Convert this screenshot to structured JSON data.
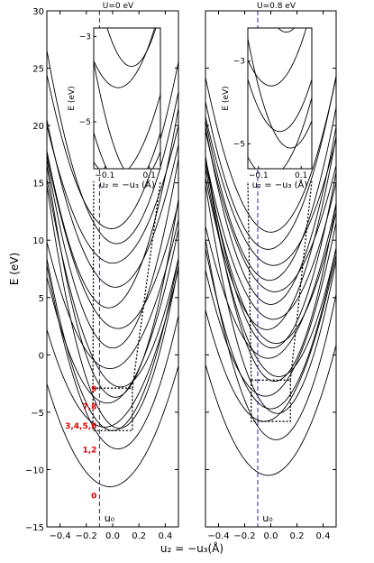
{
  "figure": {
    "ylabel": "E (eV)",
    "xlabel": "u$_2$ = −u$_3$(Å)",
    "xlabel_text": "u₂ = −u₃(Å)"
  },
  "chart_data": [
    {
      "type": "line",
      "title": "U=0 eV",
      "xlim": [
        -0.5,
        0.5
      ],
      "ylim": [
        -15,
        30
      ],
      "xticks": [
        -0.4,
        -0.2,
        0.0,
        0.2,
        0.4
      ],
      "xtick_labels": [
        "−0.4",
        "−0.2",
        "0.0",
        "0.2",
        "0.4"
      ],
      "yticks": [
        -15,
        -10,
        -5,
        0,
        5,
        10,
        15,
        20,
        25,
        30
      ],
      "ytick_labels": [
        "−15",
        "−10",
        "−5",
        "0",
        "5",
        "10",
        "15",
        "20",
        "25",
        "30"
      ],
      "u0": -0.1,
      "u0_label": "u₀",
      "band_minima": [
        -11.5,
        -8.2,
        -6.3,
        -6.4,
        -6.6,
        -4.2,
        -3.7,
        -2.8,
        -1.2,
        0.6,
        2.3,
        4.1,
        5.9,
        8.0,
        9.7,
        11.0
      ],
      "band_curvature": [
        39,
        55,
        44,
        70,
        60,
        52,
        75,
        58,
        48,
        66,
        52,
        62,
        54,
        48,
        60,
        56
      ],
      "band_center": [
        -0.02,
        0.04,
        -0.06,
        0.05,
        0.0,
        -0.04,
        0.02,
        0.06,
        -0.02,
        0.0,
        0.04,
        -0.03,
        0.02,
        0.0,
        0.03,
        -0.01
      ],
      "state_labels": [
        {
          "text": "0",
          "y": -12.2
        },
        {
          "text": "1,2",
          "y": -8.2
        },
        {
          "text": "3,4,5,6",
          "y": -6.1
        },
        {
          "text": "7,8",
          "y": -4.4
        },
        {
          "text": "9",
          "y": -2.9
        }
      ],
      "inset": {
        "xlim": [
          -0.15,
          0.15
        ],
        "ylim": [
          -6.1,
          -2.8
        ],
        "xticks": [
          -0.1,
          0.1
        ],
        "xtick_labels": [
          "−0.1",
          "0.1"
        ],
        "yticks": [
          -5,
          -3
        ],
        "ytick_labels": [
          "−5",
          "−3"
        ],
        "ylabel": "E (eV)",
        "xlabel": "u₂ = −u₃ (Å)"
      },
      "zoom_box": {
        "x": [
          -0.15,
          0.15
        ],
        "y": [
          -6.6,
          -2.9
        ]
      }
    },
    {
      "type": "line",
      "title": "U=0.8 eV",
      "xlim": [
        -0.5,
        0.5
      ],
      "ylim": [
        -15,
        30
      ],
      "xticks": [
        -0.4,
        -0.2,
        0.0,
        0.2,
        0.4
      ],
      "xtick_labels": [
        "−0.4",
        "−0.2",
        "0.0",
        "0.2",
        "0.4"
      ],
      "yticks": [
        -15,
        -10,
        -5,
        0,
        5,
        10,
        15,
        20,
        25,
        30
      ],
      "ytick_labels": [],
      "u0": -0.1,
      "u0_label": "u₀",
      "band_minima": [
        -10.5,
        -7.4,
        -5.8,
        -5.1,
        -4.7,
        -3.6,
        -2.3,
        -1.9,
        -0.3,
        0.6,
        1.0,
        2.2,
        3.1,
        4.4,
        5.5,
        6.5,
        7.8,
        9.2,
        10.7
      ],
      "band_curvature": [
        42,
        60,
        48,
        66,
        56,
        52,
        70,
        58,
        50,
        64,
        54,
        60,
        52,
        62,
        50,
        58,
        48,
        56,
        54
      ],
      "band_center": [
        -0.02,
        0.04,
        -0.05,
        0.05,
        0.0,
        -0.04,
        0.03,
        0.06,
        -0.02,
        0.01,
        0.04,
        -0.03,
        0.02,
        0.0,
        0.03,
        -0.01,
        0.02,
        -0.02,
        0.0
      ],
      "inset": {
        "xlim": [
          -0.15,
          0.15
        ],
        "ylim": [
          -5.6,
          -2.2
        ],
        "xticks": [
          -0.1,
          0.1
        ],
        "xtick_labels": [
          "−0.1",
          "0.1"
        ],
        "yticks": [
          -5,
          -3
        ],
        "ytick_labels": [
          "−5",
          "−3"
        ],
        "ylabel": "E (eV)",
        "xlabel": "u₂ = −u₃ (Å)"
      },
      "zoom_box": {
        "x": [
          -0.15,
          0.15
        ],
        "y": [
          -5.8,
          -2.2
        ]
      }
    }
  ],
  "colors": {
    "axis": "#000000",
    "curve": "#000000",
    "u0_line": "#2222cc",
    "state_label": "#dd0000",
    "background": "#ffffff"
  }
}
